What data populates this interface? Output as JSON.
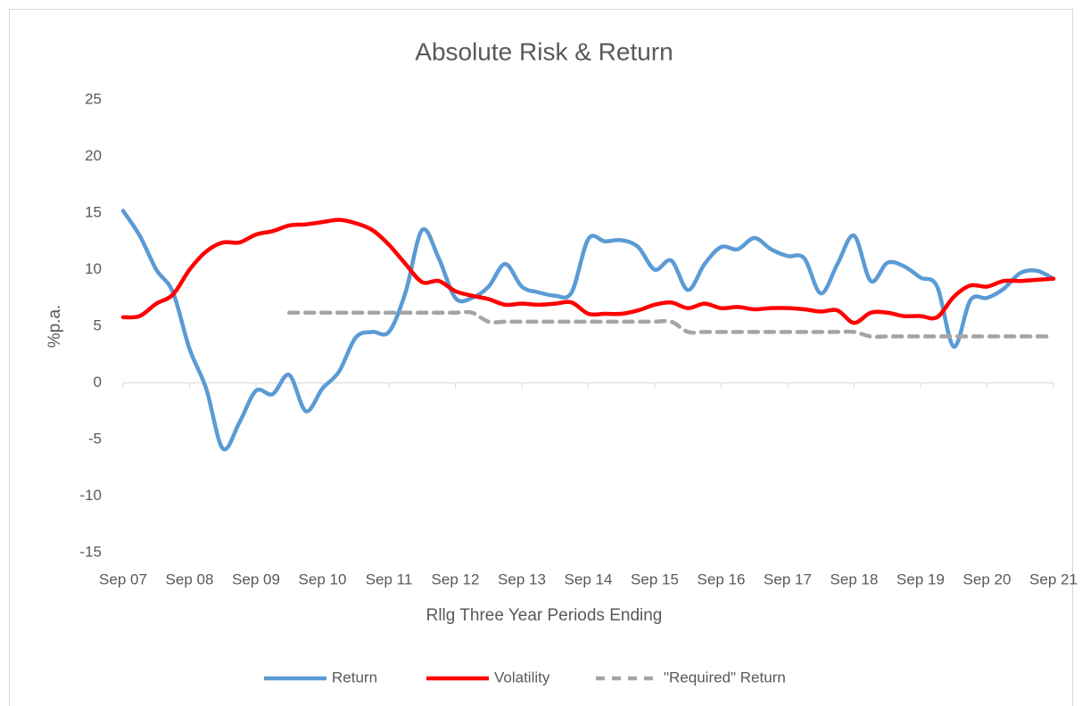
{
  "chart_data": {
    "type": "line",
    "title": "Absolute Risk & Return",
    "x_label": "Rllg Three Year Periods Ending",
    "y_label": "%p.a.",
    "categories": [
      "Sep 07",
      null,
      null,
      null,
      "Sep 08",
      null,
      null,
      null,
      "Sep 09",
      null,
      null,
      null,
      "Sep 10",
      null,
      null,
      null,
      "Sep 11",
      null,
      null,
      null,
      "Sep 12",
      null,
      null,
      null,
      "Sep 13",
      null,
      null,
      null,
      "Sep 14",
      null,
      null,
      null,
      "Sep 15",
      null,
      null,
      null,
      "Sep 16",
      null,
      null,
      null,
      "Sep 17",
      null,
      null,
      null,
      "Sep 18",
      null,
      null,
      null,
      "Sep 19",
      null,
      null,
      null,
      "Sep 20",
      null,
      null,
      null,
      "Sep 21"
    ],
    "series": [
      {
        "name": "Return",
        "color": "#5b9bd5",
        "style": "solid",
        "values": [
          15.2,
          13,
          10,
          8,
          3,
          -0.5,
          -5.8,
          -3.5,
          -0.7,
          -1,
          0.7,
          -2.5,
          -0.5,
          1,
          4,
          4.5,
          4.5,
          8,
          13.5,
          11,
          7.5,
          7.5,
          8.5,
          10.5,
          8.5,
          8,
          7.7,
          8,
          12.7,
          12.5,
          12.6,
          12,
          10,
          10.8,
          8.2,
          10.5,
          12,
          11.8,
          12.8,
          11.8,
          11.2,
          11,
          7.9,
          10.5,
          13,
          9,
          10.6,
          10.3,
          9.3,
          8.5,
          3.2,
          7.3,
          7.5,
          8.3,
          9.7,
          9.9,
          9.2
        ]
      },
      {
        "name": "Volatility",
        "color": "#ff0000",
        "style": "solid",
        "values": [
          5.8,
          5.9,
          7,
          7.8,
          10,
          11.6,
          12.4,
          12.4,
          13.1,
          13.4,
          13.9,
          14,
          14.2,
          14.4,
          14.1,
          13.5,
          12.2,
          10.5,
          8.9,
          9,
          8.1,
          7.7,
          7.4,
          6.9,
          7,
          6.9,
          7,
          7.1,
          6.1,
          6.1,
          6.1,
          6.4,
          6.9,
          7.1,
          6.6,
          7,
          6.6,
          6.7,
          6.5,
          6.6,
          6.6,
          6.5,
          6.3,
          6.4,
          5.3,
          6.2,
          6.2,
          5.9,
          5.9,
          5.8,
          7.6,
          8.6,
          8.5,
          9,
          9,
          9.1,
          9.2
        ]
      },
      {
        "name": "\"Required\" Return",
        "color": "#a5a5a5",
        "style": "dashed",
        "values": [
          null,
          null,
          null,
          null,
          null,
          null,
          null,
          null,
          null,
          null,
          6.2,
          6.2,
          6.2,
          6.2,
          6.2,
          6.2,
          6.2,
          6.2,
          6.2,
          6.2,
          6.2,
          6.2,
          5.4,
          5.4,
          5.4,
          5.4,
          5.4,
          5.4,
          5.4,
          5.4,
          5.4,
          5.4,
          5.4,
          5.4,
          4.5,
          4.5,
          4.5,
          4.5,
          4.5,
          4.5,
          4.5,
          4.5,
          4.5,
          4.5,
          4.5,
          4.1,
          4.1,
          4.1,
          4.1,
          4.1,
          4.1,
          4.1,
          4.1,
          4.1,
          4.1,
          4.1,
          4.1
        ]
      }
    ],
    "ylim": [
      -15,
      25
    ],
    "yticks": [
      -15,
      -10,
      -5,
      0,
      5,
      10,
      15,
      20,
      25
    ],
    "grid": false,
    "legend": "bottom"
  }
}
